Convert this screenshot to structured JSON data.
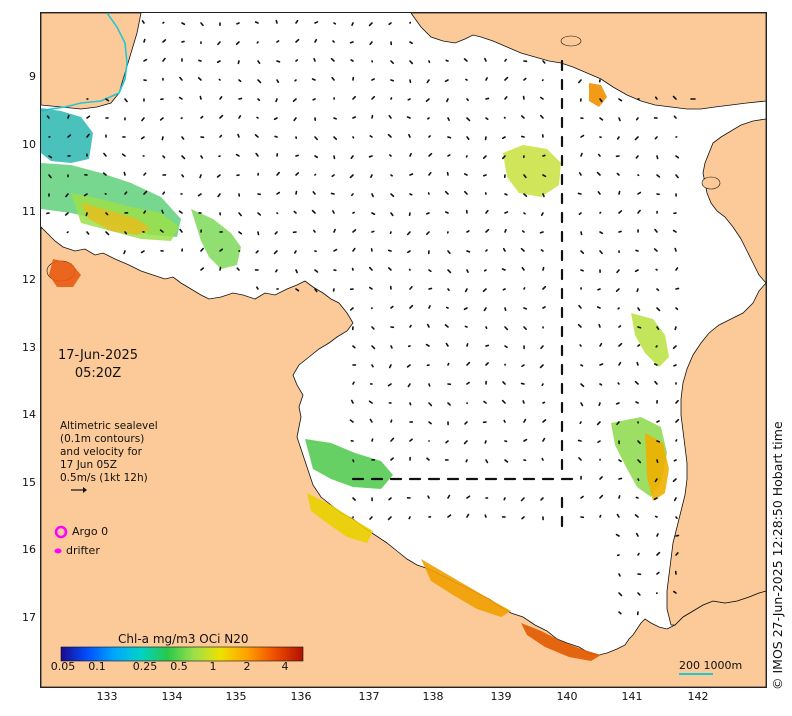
{
  "map": {
    "datetime": {
      "date": "17-Jun-2025",
      "time": "05:20Z"
    },
    "altimetry_note": [
      "Altimetric sealevel",
      "(0.1m contours)",
      "and velocity for",
      "17 Jun 05Z",
      "0.5m/s (1kt 12h)"
    ],
    "legend": {
      "argo_label": "Argo 0",
      "drifter_label": "drifter",
      "argo_color": "#ff00ff",
      "drifter_color": "#ff00ff"
    },
    "colorbar": {
      "title": "Chl-a mg/m3 OCi N20",
      "ticks": [
        "0.05",
        "0.1",
        "0.25",
        "0.5",
        "1",
        "2",
        "4"
      ],
      "ramp": [
        "#1a0a8c",
        "#0050ff",
        "#00a6ff",
        "#00d2c8",
        "#29c84a",
        "#9be04a",
        "#f0e000",
        "#ffa000",
        "#f05000",
        "#b01000"
      ]
    },
    "scale_label": "200  1000m",
    "credit": "© IMOS 27-Jun-2025 12:28:50 Hobart time",
    "lat_labels": [
      "9",
      "10",
      "11",
      "12",
      "13",
      "14",
      "15",
      "16",
      "17"
    ],
    "lat_values": [
      -9,
      -10,
      -11,
      -12,
      -13,
      -14,
      -15,
      -16,
      -17
    ],
    "lon_labels": [
      "133",
      "134",
      "135",
      "136",
      "137",
      "138",
      "139",
      "140",
      "141",
      "142"
    ],
    "lon_values": [
      133,
      134,
      135,
      136,
      137,
      138,
      139,
      140,
      141,
      142
    ],
    "colors": {
      "land": "#fcca98",
      "coast": "#111111",
      "arrow": "#111111",
      "water": "#ffffff",
      "cyan_line": "#22c8d0"
    }
  }
}
